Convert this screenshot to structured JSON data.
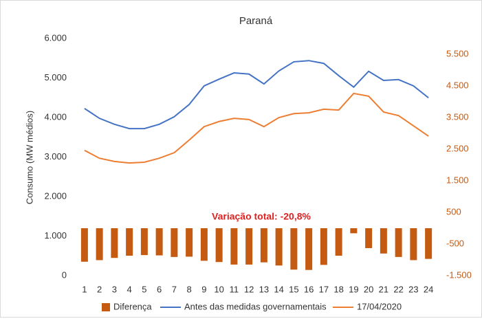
{
  "chart_data": {
    "type": "bar_line",
    "title": "Paraná",
    "ylabel": "Consumo (MW médios)",
    "annotation": "Variação total: -20,8%",
    "categories": [
      "1",
      "2",
      "3",
      "4",
      "5",
      "6",
      "7",
      "8",
      "9",
      "10",
      "11",
      "12",
      "13",
      "14",
      "15",
      "16",
      "17",
      "18",
      "19",
      "20",
      "21",
      "22",
      "23",
      "24"
    ],
    "series": [
      {
        "name": "Diferença",
        "type": "bar",
        "axis": "y2",
        "color": "#c55a11",
        "values": [
          -1060,
          -1010,
          -940,
          -870,
          -850,
          -860,
          -910,
          -900,
          -1030,
          -1070,
          -1150,
          -1150,
          -1080,
          -1180,
          -1310,
          -1320,
          -1160,
          -870,
          -160,
          -630,
          -800,
          -910,
          -1010,
          -970
        ]
      },
      {
        "name": "Antes das medidas governamentais",
        "type": "line",
        "axis": "y",
        "color": "#4472c4",
        "values": [
          4230,
          3980,
          3830,
          3720,
          3720,
          3830,
          4020,
          4330,
          4800,
          4970,
          5130,
          5100,
          4850,
          5180,
          5410,
          5440,
          5370,
          5060,
          4770,
          5170,
          4940,
          4960,
          4800,
          4500
        ]
      },
      {
        "name": "17/04/2020",
        "type": "line",
        "axis": "y",
        "color": "#ed7d31",
        "values": [
          3170,
          2970,
          2890,
          2850,
          2870,
          2970,
          3110,
          3430,
          3770,
          3900,
          3980,
          3950,
          3770,
          4000,
          4100,
          4120,
          4210,
          4190,
          4610,
          4540,
          4140,
          4050,
          3790,
          3530
        ]
      }
    ],
    "ylim": [
      0,
      6000
    ],
    "yticks": [
      0,
      {
        "value": 1000,
        "label": "1.000"
      },
      {
        "value": 2000,
        "label": "2.000"
      },
      {
        "value": 3000,
        "label": "3.000"
      },
      {
        "value": 4000,
        "label": "4.000"
      },
      {
        "value": 5000,
        "label": "5.000"
      },
      {
        "value": 6000,
        "label": "6.000"
      }
    ],
    "y2lim": [
      -1500,
      6000
    ],
    "y2ticks": [
      {
        "value": -1500,
        "label": "-1.500"
      },
      -500,
      500,
      {
        "value": 1500,
        "label": "1.500"
      },
      {
        "value": 2500,
        "label": "2.500"
      },
      {
        "value": 3500,
        "label": "3.500"
      },
      {
        "value": 4500,
        "label": "4.500"
      },
      {
        "value": 5500,
        "label": "5.500"
      }
    ],
    "y2color": "#c55a11",
    "annotation_color": "#e02020",
    "grid": false,
    "legend": "bottom"
  }
}
